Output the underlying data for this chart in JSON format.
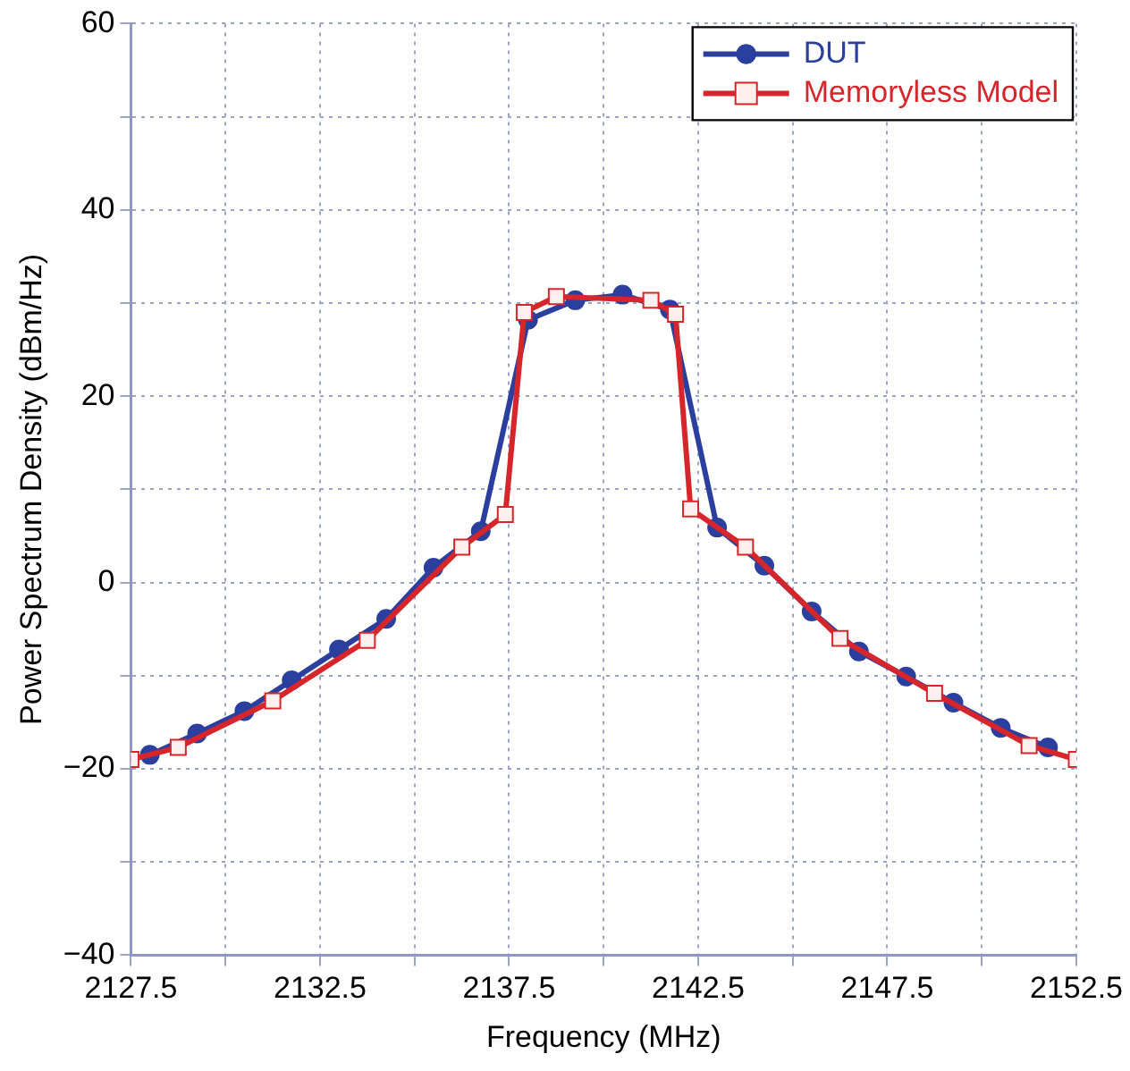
{
  "chart_data": {
    "type": "line",
    "xlabel": "Frequency (MHz)",
    "ylabel": "Power Spectrum Density (dBm/Hz)",
    "xlim": [
      2127.5,
      2152.5
    ],
    "xticks": [
      2127.5,
      {
        "value": 2130,
        "label": null
      },
      2132.5,
      {
        "value": 2135,
        "label": null
      },
      2137.5,
      {
        "value": 2140,
        "label": null
      },
      2142.5,
      {
        "value": 2145,
        "label": null
      },
      2147.5,
      {
        "value": 2150,
        "label": null
      },
      2152.5
    ],
    "ylim": [
      -40,
      60
    ],
    "yticks": [
      {
        "value": -40,
        "label": "−40"
      },
      {
        "value": -30,
        "label": null
      },
      {
        "value": -20,
        "label": "−20"
      },
      {
        "value": -10,
        "label": null
      },
      0,
      {
        "value": 10,
        "label": null
      },
      20,
      {
        "value": 30,
        "label": null
      },
      40,
      {
        "value": 50,
        "label": null
      },
      60
    ],
    "grid": true,
    "legend": "top right",
    "line_style": "solid",
    "series": [
      {
        "name": "DUT",
        "color": "#2b3f9e",
        "marker": "circle",
        "x": [
          2128,
          2129.25,
          2130.5,
          2131.75,
          2133,
          2134.25,
          2135.5,
          2136.75,
          2138,
          2139.25,
          2140.5,
          2141.75,
          2143,
          2144.25,
          2145.5,
          2146.75,
          2148,
          2149.25,
          2150.5,
          2151.75
        ],
        "values": [
          -18.5,
          -16.2,
          -13.8,
          -10.5,
          -7.2,
          -3.9,
          1.6,
          5.5,
          28.2,
          30.3,
          30.9,
          29.3,
          5.9,
          1.8,
          -3.1,
          -7.4,
          -10.1,
          -12.9,
          -15.6,
          -17.7
        ]
      },
      {
        "name": "Memoryless Model",
        "color": "#d7262b",
        "marker": "square",
        "x": [
          2127.5,
          2128.75,
          2131.25,
          2133.75,
          2136.25,
          2137.4,
          2137.9,
          2138.75,
          2141.25,
          2141.9,
          2142.3,
          2143.75,
          2146.25,
          2148.75,
          2151.25,
          2152.5
        ],
        "values": [
          -19,
          -17.7,
          -12.7,
          -6.2,
          3.8,
          7.3,
          29,
          30.7,
          30.3,
          28.8,
          7.9,
          3.8,
          -6,
          -11.9,
          -17.5,
          -19
        ]
      }
    ]
  }
}
